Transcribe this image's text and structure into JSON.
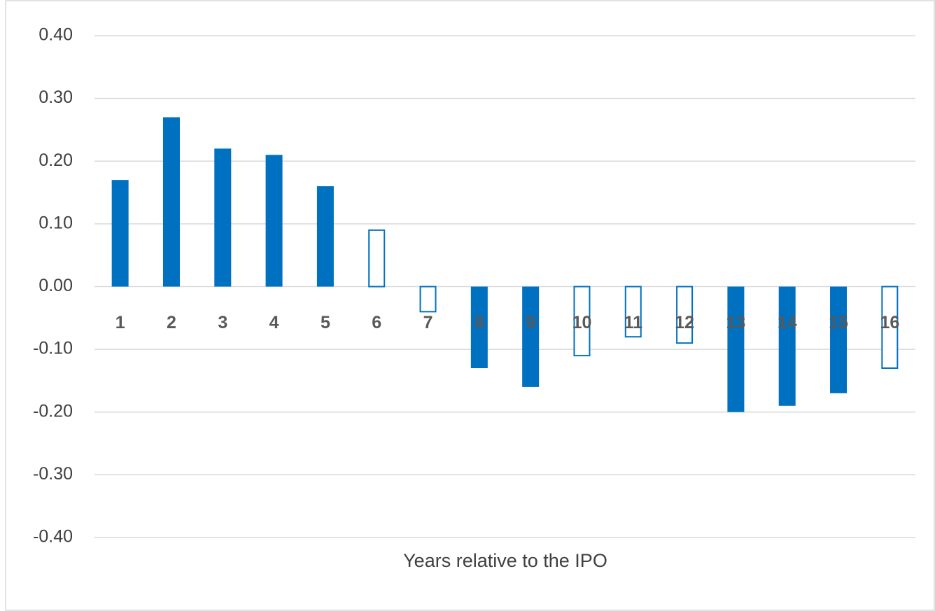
{
  "chart_data": {
    "type": "bar",
    "xlabel": "Years relative to the IPO",
    "categories": [
      "1",
      "2",
      "3",
      "4",
      "5",
      "6",
      "7",
      "8",
      "9",
      "10",
      "11",
      "12",
      "13",
      "14",
      "15",
      "16"
    ],
    "values": [
      0.17,
      0.27,
      0.22,
      0.21,
      0.16,
      0.09,
      -0.04,
      -0.13,
      -0.16,
      -0.11,
      -0.08,
      -0.09,
      -0.2,
      -0.19,
      -0.17,
      -0.13
    ],
    "filled": [
      true,
      true,
      true,
      true,
      true,
      false,
      false,
      true,
      true,
      false,
      false,
      false,
      true,
      true,
      true,
      false
    ],
    "color": "#0070c0",
    "ylim": [
      -0.4,
      0.4
    ],
    "yticks": [
      {
        "value": 0.4,
        "label": "0.40"
      },
      {
        "value": 0.3,
        "label": "0.30"
      },
      {
        "value": 0.2,
        "label": "0.20"
      },
      {
        "value": 0.1,
        "label": "0.10"
      },
      {
        "value": 0,
        "label": "0.00"
      },
      {
        "value": -0.1,
        "label": "-0.10"
      },
      {
        "value": -0.2,
        "label": "-0.20"
      },
      {
        "value": -0.3,
        "label": "-0.30"
      },
      {
        "value": -0.4,
        "label": "-0.40"
      }
    ],
    "grid": true
  }
}
